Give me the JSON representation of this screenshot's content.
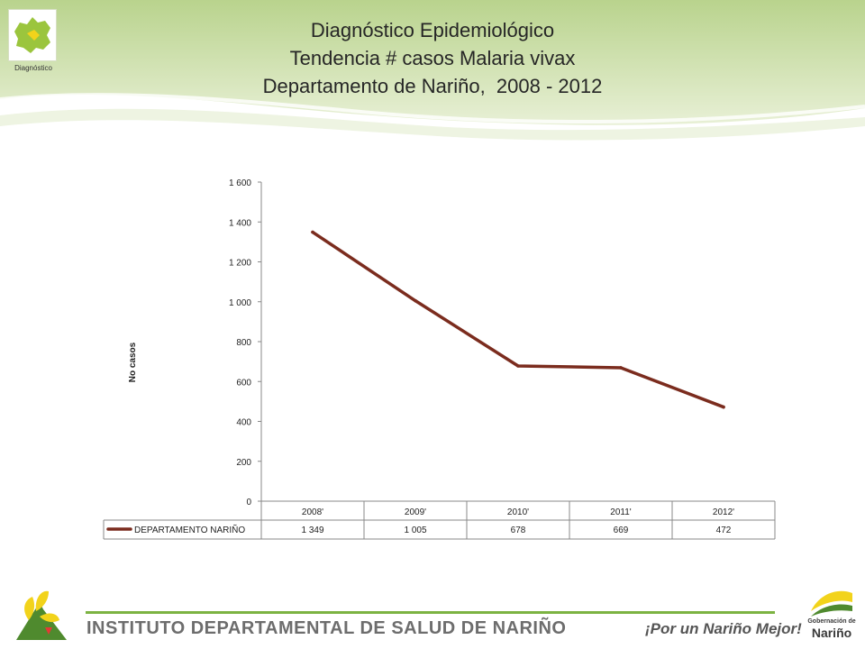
{
  "header": {
    "logo_caption": "Diagnóstico",
    "title_lines": [
      "Diagnóstico Epidemiológico",
      "Tendencia # casos Malaria vivax",
      "Departamento de Nariño,  2008 - 2012"
    ]
  },
  "chart_data": {
    "type": "line",
    "title": "",
    "ylabel": "No casos",
    "xlabel": "",
    "categories": [
      "2008'",
      "2009'",
      "2010'",
      "2011'",
      "2012'"
    ],
    "series": [
      {
        "name": "DEPARTAMENTO NARIÑO",
        "values": [
          1349,
          1005,
          678,
          669,
          472
        ],
        "value_labels": [
          "1 349",
          "1 005",
          "678",
          "669",
          "472"
        ],
        "color": "#7b2c1e"
      }
    ],
    "ylim": [
      0,
      1600
    ],
    "yticks": [
      0,
      200,
      400,
      600,
      800,
      1000,
      1200,
      1400,
      1600
    ],
    "ytick_labels": [
      "0",
      "200",
      "400",
      "600",
      "800",
      "1 000",
      "1 200",
      "1 400",
      "1 600"
    ],
    "grid": false,
    "data_table": true
  },
  "footer": {
    "institute": "INSTITUTO DEPARTAMENTAL DE SALUD DE NARIÑO",
    "slogan": "¡Por un Nariño Mejor!",
    "gob_line1": "Gobernación de",
    "gob_line2": "Nariño"
  },
  "colors": {
    "series": "#7b2c1e",
    "header_green": "#c9dca3",
    "accent_green": "#7cb342",
    "yellow": "#f2d31b"
  }
}
